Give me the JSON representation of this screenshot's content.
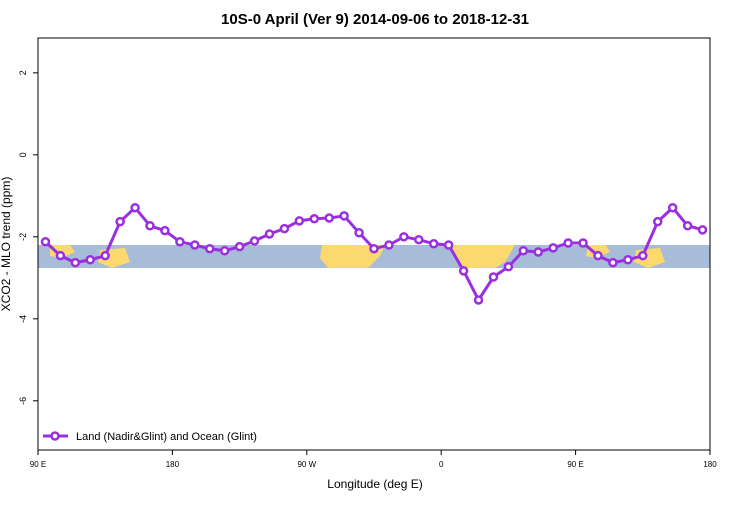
{
  "chart_data": {
    "type": "line",
    "title": "10S-0 April (Ver 9)   2014-09-06 to 2018-12-31",
    "xlabel": "Longitude (deg E)",
    "ylabel": "XCO2 - MLO trend (ppm)",
    "x": [
      95,
      105,
      115,
      125,
      135,
      145,
      155,
      165,
      175,
      185,
      195,
      205,
      215,
      225,
      235,
      245,
      255,
      265,
      275,
      285,
      295,
      305,
      315,
      325,
      335,
      345,
      355,
      365,
      375,
      385,
      395,
      405,
      415,
      425,
      435,
      445,
      455,
      465,
      475,
      485,
      495,
      505,
      515,
      525,
      535
    ],
    "series": [
      {
        "name": "Land (Nadir&Glint) and Ocean (Glint)",
        "color": "#9b2fe0",
        "values": [
          -2.12,
          -2.46,
          -2.63,
          -2.56,
          -2.46,
          -1.63,
          -1.29,
          -1.73,
          -1.85,
          -2.12,
          -2.2,
          -2.29,
          -2.34,
          -2.24,
          -2.1,
          -1.93,
          -1.8,
          -1.61,
          -1.56,
          -1.54,
          -1.49,
          -1.9,
          -2.29,
          -2.2,
          -2.0,
          -2.07,
          -2.17,
          -2.2,
          -2.83,
          -3.54,
          -2.98,
          -2.73,
          -2.34,
          -2.37,
          -2.27,
          -2.15,
          -2.15,
          -2.46,
          -2.63,
          -2.56,
          -2.46,
          -1.63,
          -1.29,
          -1.73,
          -1.83
        ]
      }
    ],
    "xlim": [
      90,
      540
    ],
    "xticks": [
      {
        "value": 90,
        "label": "90 E"
      },
      180,
      {
        "value": 270,
        "label": "90 W"
      },
      {
        "value": 360,
        "label": "0"
      },
      {
        "value": 450,
        "label": "90 E"
      },
      {
        "value": 540,
        "label": "180"
      }
    ],
    "ylim": [
      -7.2,
      2.85
    ],
    "yticks": [
      2,
      0,
      -2,
      -4,
      -6
    ],
    "legend": "bottom-left"
  }
}
